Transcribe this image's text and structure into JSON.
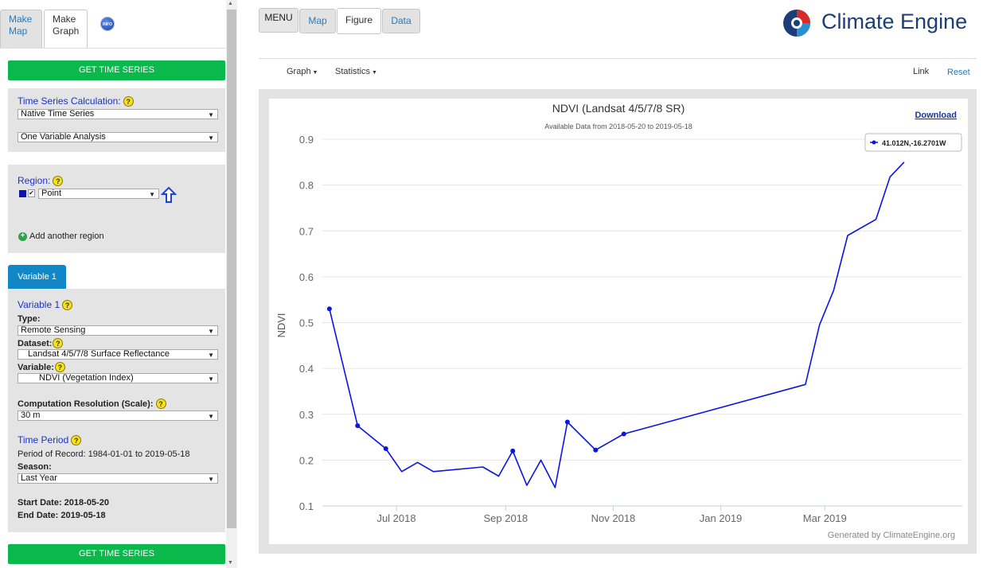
{
  "tabs": [
    {
      "label1": "Make",
      "label2": "Map"
    },
    {
      "label1": "Make",
      "label2": "Graph"
    }
  ],
  "info_label": "INFO",
  "get_time_series": "GET TIME SERIES",
  "ts_calc": {
    "title": "Time Series Calculation:",
    "select1": "Native Time Series",
    "select2": "One Variable Analysis"
  },
  "region": {
    "title": "Region:",
    "select": "Point",
    "add_label": "Add another region"
  },
  "variable_tab": "Variable 1",
  "variable": {
    "title": "Variable 1",
    "type_label": "Type:",
    "type_value": "Remote Sensing",
    "dataset_label": "Dataset:",
    "dataset_value": "Landsat 4/5/7/8 Surface Reflectance",
    "variable_label": "Variable:",
    "variable_value": "NDVI (Vegetation Index)",
    "scale_label": "Computation Resolution (Scale):",
    "scale_value": "30 m"
  },
  "time_period": {
    "title": "Time Period",
    "record": "Period of Record: 1984-01-01 to 2019-05-18",
    "season_label": "Season:",
    "season_value": "Last Year",
    "start": "Start Date: 2018-05-20",
    "end": "End Date: 2019-05-18"
  },
  "topbar": {
    "menu": "MENU",
    "map": "Map",
    "figure": "Figure",
    "data": "Data",
    "brand": "Climate Engine"
  },
  "toolbar": {
    "graph": "Graph",
    "statistics": "Statistics",
    "link": "Link",
    "reset": "Reset"
  },
  "download": "Download",
  "footer": "Generated by ClimateEngine.org",
  "colors": {
    "series": "#0a14e6",
    "title_blue": "#1a33c8",
    "green": "#0ab84b",
    "tab_blue": "#1287c8"
  },
  "chart_data": {
    "type": "line",
    "title": "NDVI (Landsat 4/5/7/8 SR)",
    "subtitle": "Available Data from 2018-05-20 to 2019-05-18",
    "ylabel": "NDVI",
    "xlabel": "",
    "legend": "41.012N,-16.2701W",
    "legend_position": "top-right",
    "ylim": [
      0.1,
      0.9
    ],
    "yticks": [
      "0.1",
      "0.2",
      "0.3",
      "0.4",
      "0.5",
      "0.6",
      "0.7",
      "0.8",
      "0.9"
    ],
    "xlim": [
      "2018-05-20",
      "2019-05-18"
    ],
    "xticks": [
      {
        "date": "2018-07-01",
        "label": "Jul 2018"
      },
      {
        "date": "2018-09-01",
        "label": "Sep 2018"
      },
      {
        "date": "2018-11-01",
        "label": "Nov 2018"
      },
      {
        "date": "2019-01-01",
        "label": "Jan 2019"
      },
      {
        "date": "2019-03-01",
        "label": "Mar 2019"
      }
    ],
    "grid": true,
    "series": [
      {
        "name": "41.012N,-16.2701W",
        "points": [
          {
            "x": "2018-05-24",
            "y": 0.53,
            "marker": true
          },
          {
            "x": "2018-06-09",
            "y": 0.275,
            "marker": true
          },
          {
            "x": "2018-06-25",
            "y": 0.225,
            "marker": true
          },
          {
            "x": "2018-07-04",
            "y": 0.175,
            "marker": false
          },
          {
            "x": "2018-07-13",
            "y": 0.195,
            "marker": false
          },
          {
            "x": "2018-07-22",
            "y": 0.175,
            "marker": false
          },
          {
            "x": "2018-08-19",
            "y": 0.185,
            "marker": false
          },
          {
            "x": "2018-08-28",
            "y": 0.165,
            "marker": false
          },
          {
            "x": "2018-09-05",
            "y": 0.22,
            "marker": true
          },
          {
            "x": "2018-09-13",
            "y": 0.145,
            "marker": false
          },
          {
            "x": "2018-09-21",
            "y": 0.2,
            "marker": false
          },
          {
            "x": "2018-09-29",
            "y": 0.14,
            "marker": false
          },
          {
            "x": "2018-10-06",
            "y": 0.283,
            "marker": true
          },
          {
            "x": "2018-10-22",
            "y": 0.222,
            "marker": true
          },
          {
            "x": "2018-11-07",
            "y": 0.257,
            "marker": true
          },
          {
            "x": "2019-02-18",
            "y": 0.365,
            "marker": false
          },
          {
            "x": "2019-02-26",
            "y": 0.495,
            "marker": false
          },
          {
            "x": "2019-03-06",
            "y": 0.57,
            "marker": false
          },
          {
            "x": "2019-03-14",
            "y": 0.69,
            "marker": false
          },
          {
            "x": "2019-03-30",
            "y": 0.725,
            "marker": false
          },
          {
            "x": "2019-04-07",
            "y": 0.818,
            "marker": false
          },
          {
            "x": "2019-04-15",
            "y": 0.85,
            "marker": false
          }
        ]
      }
    ]
  }
}
